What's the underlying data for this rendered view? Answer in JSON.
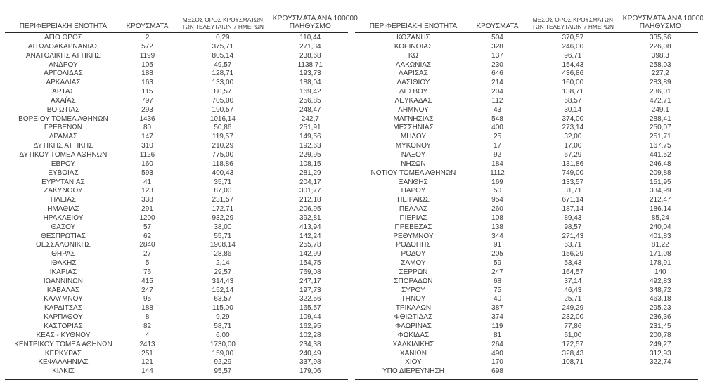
{
  "colors": {
    "text": "#3c3c3c",
    "rule_line": "#262626",
    "background": "#ffffff"
  },
  "header": {
    "region": "ΠΕΡΙΦΕΡΕΙΑΚΗ ΕΝΟΤΗΤΑ",
    "cases": "ΚΡΟΥΣΜΑΤΑ",
    "avg7_line1": "ΜΕΣΟΣ ΟΡΟΣ ΚΡΟΥΣΜΑΤΩΝ",
    "avg7_line2": "ΤΩΝ ΤΕΛΕΥΤΑΙΩΝ 7 ΗΜΕΡΩΝ",
    "per100k_line1": "ΚΡΟΥΣΜΑΤΑ ΑΝΑ 100000",
    "per100k_line2": "ΠΛΗΘΥΣΜΟ"
  },
  "left_rows": [
    [
      "ΑΓΙΟ ΟΡΟΣ",
      "2",
      "0,29",
      "110,44"
    ],
    [
      "ΑΙΤΩΛΟΑΚΑΡΝΑΝΙΑΣ",
      "572",
      "375,71",
      "271,34"
    ],
    [
      "ΑΝΑΤΟΛΙΚΗΣ ΑΤΤΙΚΗΣ",
      "1199",
      "805,14",
      "238,68"
    ],
    [
      "ΑΝΔΡΟΥ",
      "105",
      "49,57",
      "1138,71"
    ],
    [
      "ΑΡΓΟΛΙΔΑΣ",
      "188",
      "128,71",
      "193,73"
    ],
    [
      "ΑΡΚΑΔΙΑΣ",
      "163",
      "133,00",
      "188,04"
    ],
    [
      "ΑΡΤΑΣ",
      "115",
      "80,57",
      "169,42"
    ],
    [
      "ΑΧΑΪΑΣ",
      "797",
      "705,00",
      "256,85"
    ],
    [
      "ΒΟΙΩΤΙΑΣ",
      "293",
      "190,57",
      "248,47"
    ],
    [
      "ΒΟΡΕΙΟΥ ΤΟΜΕΑ ΑΘΗΝΩΝ",
      "1436",
      "1016,14",
      "242,7"
    ],
    [
      "ΓΡΕΒΕΝΩΝ",
      "80",
      "50,86",
      "251,91"
    ],
    [
      "ΔΡΑΜΑΣ",
      "147",
      "119,57",
      "149,56"
    ],
    [
      "ΔΥΤΙΚΗΣ ΑΤΤΙΚΗΣ",
      "310",
      "210,29",
      "192,63"
    ],
    [
      "ΔΥΤΙΚΟΥ ΤΟΜΕΑ ΑΘΗΝΩΝ",
      "1126",
      "775,00",
      "229,95"
    ],
    [
      "ΕΒΡΟΥ",
      "160",
      "118,86",
      "108,15"
    ],
    [
      "ΕΥΒΟΙΑΣ",
      "593",
      "400,43",
      "281,29"
    ],
    [
      "ΕΥΡΥΤΑΝΙΑΣ",
      "41",
      "35,71",
      "204,17"
    ],
    [
      "ΖΑΚΥΝΘΟΥ",
      "123",
      "87,00",
      "301,77"
    ],
    [
      "ΗΛΕΙΑΣ",
      "338",
      "231,57",
      "212,18"
    ],
    [
      "ΗΜΑΘΙΑΣ",
      "291",
      "172,71",
      "206,95"
    ],
    [
      "ΗΡΑΚΛΕΙΟΥ",
      "1200",
      "932,29",
      "392,81"
    ],
    [
      "ΘΑΣΟΥ",
      "57",
      "38,00",
      "413,94"
    ],
    [
      "ΘΕΣΠΡΩΤΙΑΣ",
      "62",
      "55,71",
      "142,24"
    ],
    [
      "ΘΕΣΣΑΛΟΝΙΚΗΣ",
      "2840",
      "1908,14",
      "255,78"
    ],
    [
      "ΘΗΡΑΣ",
      "27",
      "28,86",
      "142,99"
    ],
    [
      "ΙΘΑΚΗΣ",
      "5",
      "2,14",
      "154,75"
    ],
    [
      "ΙΚΑΡΙΑΣ",
      "76",
      "29,57",
      "769,08"
    ],
    [
      "ΙΩΑΝΝΙΝΩΝ",
      "415",
      "314,43",
      "247,17"
    ],
    [
      "ΚΑΒΑΛΑΣ",
      "247",
      "152,14",
      "197,73"
    ],
    [
      "ΚΑΛΥΜΝΟΥ",
      "95",
      "63,57",
      "322,56"
    ],
    [
      "ΚΑΡΔΙΤΣΑΣ",
      "188",
      "115,00",
      "165,57"
    ],
    [
      "ΚΑΡΠΑΘΟΥ",
      "8",
      "9,29",
      "109,44"
    ],
    [
      "ΚΑΣΤΟΡΙΑΣ",
      "82",
      "58,71",
      "162,95"
    ],
    [
      "ΚΕΑΣ - ΚΥΘΝΟΥ",
      "4",
      "6,00",
      "102,28"
    ],
    [
      "ΚΕΝΤΡΙΚΟΥ ΤΟΜΕΑ ΑΘΗΝΩΝ",
      "2413",
      "1730,00",
      "234,38"
    ],
    [
      "ΚΕΡΚΥΡΑΣ",
      "251",
      "159,00",
      "240,49"
    ],
    [
      "ΚΕΦΑΛΛΗΝΙΑΣ",
      "121",
      "92,29",
      "337,98"
    ],
    [
      "ΚΙΛΚΙΣ",
      "144",
      "95,57",
      "179,06"
    ]
  ],
  "right_rows": [
    [
      "ΚΟΖΑΝΗΣ",
      "504",
      "370,57",
      "335,56"
    ],
    [
      "ΚΟΡΙΝΘΙΑΣ",
      "328",
      "246,00",
      "226,08"
    ],
    [
      "ΚΩ",
      "137",
      "96,71",
      "398,3"
    ],
    [
      "ΛΑΚΩΝΙΑΣ",
      "230",
      "154,43",
      "258,03"
    ],
    [
      "ΛΑΡΙΣΑΣ",
      "646",
      "436,86",
      "227,2"
    ],
    [
      "ΛΑΣΙΘΙΟΥ",
      "214",
      "160,00",
      "283,89"
    ],
    [
      "ΛΕΣΒΟΥ",
      "204",
      "138,71",
      "236,01"
    ],
    [
      "ΛΕΥΚΑΔΑΣ",
      "112",
      "68,57",
      "472,71"
    ],
    [
      "ΛΗΜΝΟΥ",
      "43",
      "30,14",
      "249,1"
    ],
    [
      "ΜΑΓΝΗΣΙΑΣ",
      "548",
      "374,00",
      "288,41"
    ],
    [
      "ΜΕΣΣΗΝΙΑΣ",
      "400",
      "273,14",
      "250,07"
    ],
    [
      "ΜΗΛΟΥ",
      "25",
      "32,00",
      "251,71"
    ],
    [
      "ΜΥΚΟΝΟΥ",
      "17",
      "17,00",
      "167,75"
    ],
    [
      "ΝΑΞΟΥ",
      "92",
      "67,29",
      "441,52"
    ],
    [
      "ΝΗΣΩΝ",
      "184",
      "131,86",
      "246,48"
    ],
    [
      "ΝΟΤΙΟΥ ΤΟΜΕΑ ΑΘΗΝΩΝ",
      "1112",
      "749,00",
      "209,88"
    ],
    [
      "ΞΑΝΘΗΣ",
      "169",
      "133,57",
      "151,95"
    ],
    [
      "ΠΑΡΟΥ",
      "50",
      "31,71",
      "334,99"
    ],
    [
      "ΠΕΙΡΑΙΩΣ",
      "954",
      "671,14",
      "212,47"
    ],
    [
      "ΠΕΛΛΑΣ",
      "260",
      "187,14",
      "186,14"
    ],
    [
      "ΠΙΕΡΙΑΣ",
      "108",
      "89,43",
      "85,24"
    ],
    [
      "ΠΡΕΒΕΖΑΣ",
      "138",
      "98,57",
      "240,04"
    ],
    [
      "ΡΕΘΥΜΝΟΥ",
      "344",
      "271,43",
      "401,83"
    ],
    [
      "ΡΟΔΟΠΗΣ",
      "91",
      "63,71",
      "81,22"
    ],
    [
      "ΡΟΔΟΥ",
      "205",
      "156,29",
      "171,08"
    ],
    [
      "ΣΑΜΟΥ",
      "59",
      "53,43",
      "178,91"
    ],
    [
      "ΣΕΡΡΩΝ",
      "247",
      "164,57",
      "140"
    ],
    [
      "ΣΠΟΡΑΔΩΝ",
      "68",
      "37,14",
      "492,83"
    ],
    [
      "ΣΥΡΟΥ",
      "75",
      "46,43",
      "348,72"
    ],
    [
      "ΤΗΝΟΥ",
      "40",
      "25,71",
      "463,18"
    ],
    [
      "ΤΡΙΚΑΛΩΝ",
      "387",
      "249,29",
      "295,23"
    ],
    [
      "ΦΘΙΩΤΙΔΑΣ",
      "374",
      "232,00",
      "236,36"
    ],
    [
      "ΦΛΩΡΙΝΑΣ",
      "119",
      "77,86",
      "231,45"
    ],
    [
      "ΦΩΚΙΔΑΣ",
      "81",
      "61,00",
      "200,78"
    ],
    [
      "ΧΑΛΚΙΔΙΚΗΣ",
      "264",
      "172,57",
      "249,27"
    ],
    [
      "ΧΑΝΙΩΝ",
      "490",
      "328,43",
      "312,93"
    ],
    [
      "ΧΙΟΥ",
      "170",
      "108,71",
      "322,74"
    ],
    [
      "ΥΠΟ ΔΙΕΡΕΥΝΗΣΗ",
      "698",
      "",
      ""
    ]
  ]
}
